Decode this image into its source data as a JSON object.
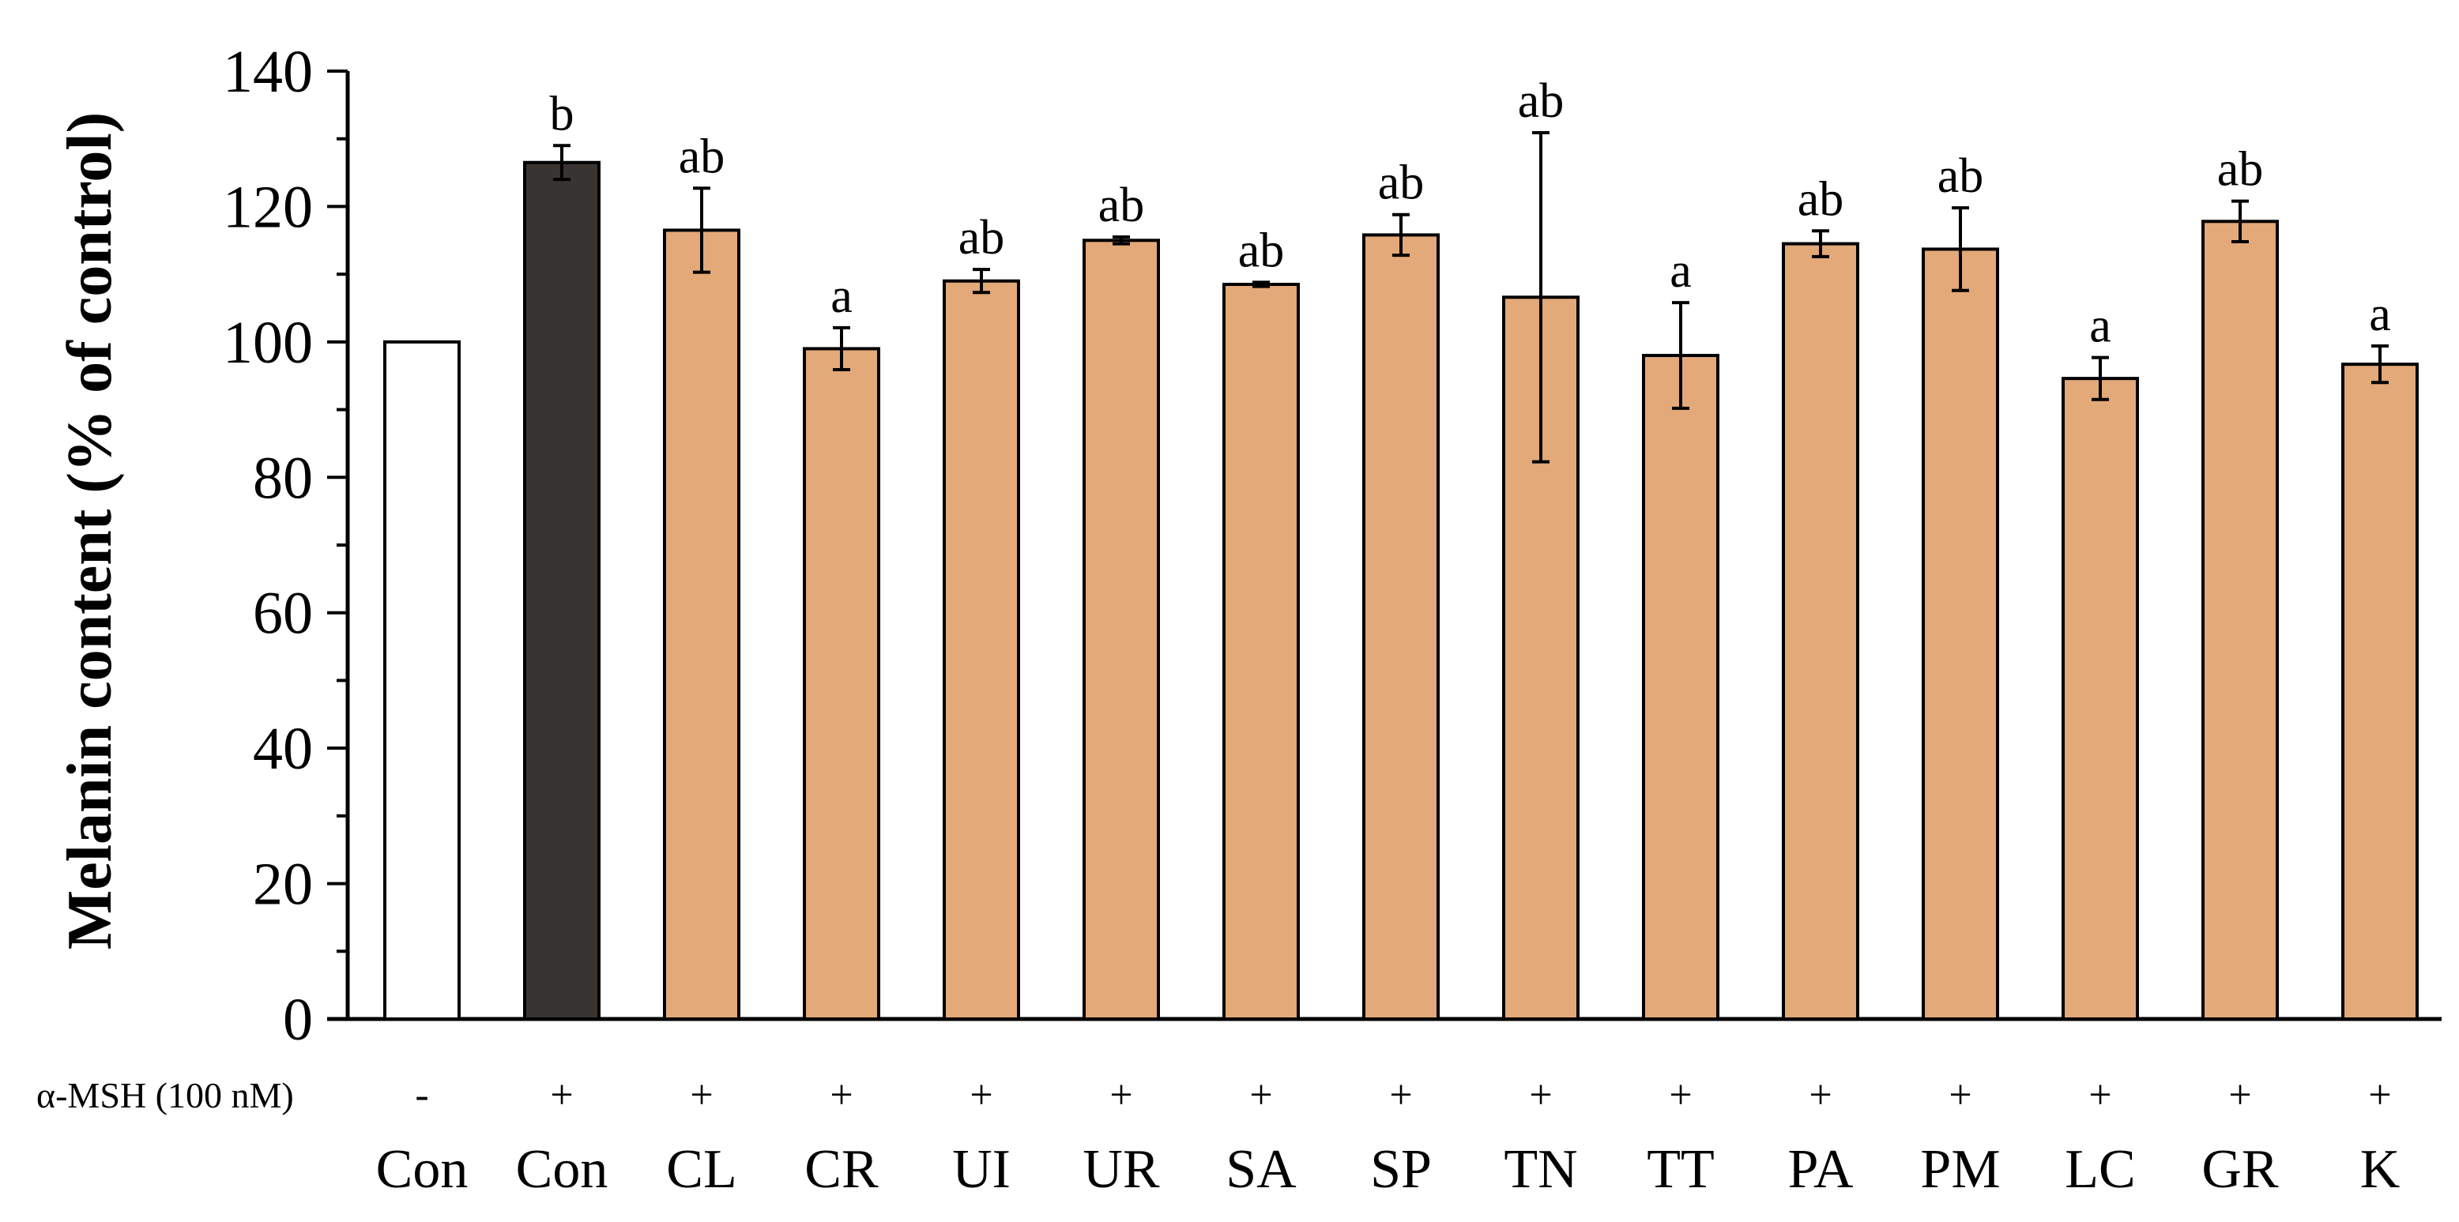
{
  "chart_data": {
    "type": "bar",
    "title": "",
    "xlabel": "",
    "ylabel": "Melanin content (% of control)",
    "ylim": [
      0,
      140
    ],
    "yticks": [
      0,
      20,
      40,
      60,
      80,
      100,
      120,
      140
    ],
    "grid": false,
    "legend": "none",
    "treatment_row_label": "α-MSH (100 nM)",
    "categories": [
      "Con",
      "Con",
      "CL",
      "CR",
      "UI",
      "UR",
      "SA",
      "SP",
      "TN",
      "TT",
      "PA",
      "PM",
      "LC",
      "GR",
      "K"
    ],
    "treatment": [
      "-",
      "+",
      "+",
      "+",
      "+",
      "+",
      "+",
      "+",
      "+",
      "+",
      "+",
      "+",
      "+",
      "+",
      "+"
    ],
    "values": [
      100,
      126.5,
      116.5,
      99,
      109,
      115,
      108.5,
      115.8,
      106.6,
      98,
      114.5,
      113.7,
      94.6,
      117.8,
      96.7
    ],
    "errors": [
      0,
      2.5,
      6.2,
      3.1,
      1.7,
      0.5,
      0.3,
      3,
      24.3,
      7.8,
      1.9,
      6.1,
      3.1,
      3,
      2.7
    ],
    "significance": [
      "",
      "b",
      "ab",
      "a",
      "ab",
      "ab",
      "ab",
      "ab",
      "ab",
      "a",
      "ab",
      "ab",
      "a",
      "ab",
      "a"
    ],
    "bar_colors": [
      "#ffffff",
      "#383432",
      "#e3a978",
      "#e3a978",
      "#e3a978",
      "#e3a978",
      "#e3a978",
      "#e3a978",
      "#e3a978",
      "#e3a978",
      "#e3a978",
      "#e3a978",
      "#e3a978",
      "#e3a978",
      "#e3a978"
    ]
  }
}
